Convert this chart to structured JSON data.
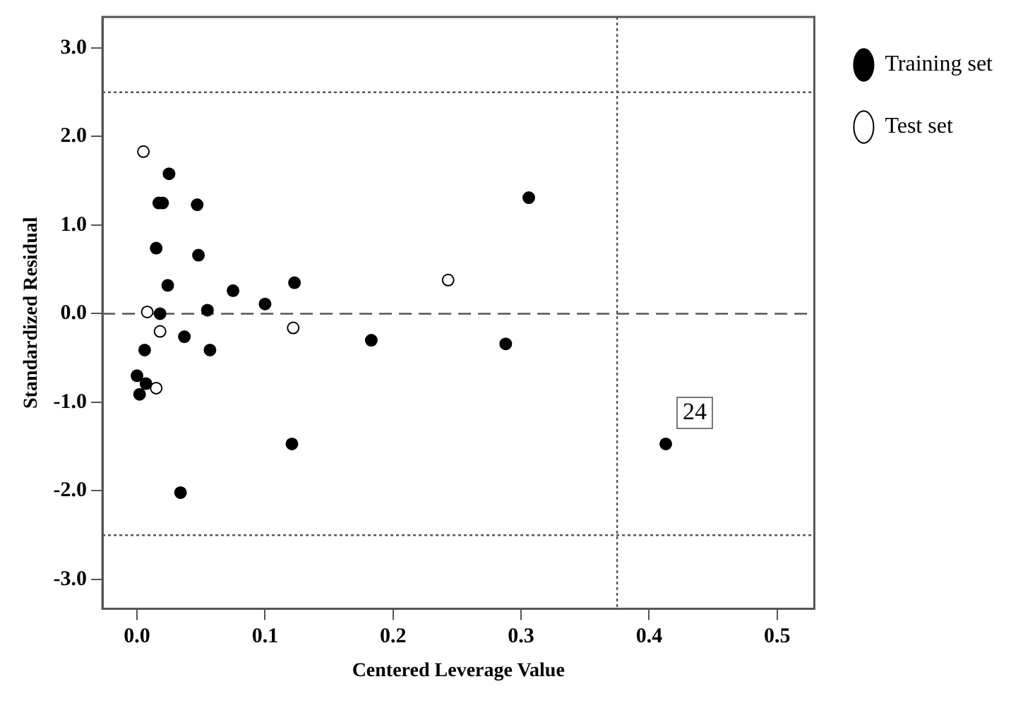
{
  "chart_data": {
    "type": "scatter",
    "xlabel": "Centered Leverage Value",
    "ylabel": "Standardized Residual",
    "xlim": [
      -0.027,
      0.529
    ],
    "ylim": [
      -3.33,
      3.35
    ],
    "xticks": [
      {
        "value": 0,
        "label": "0.0"
      },
      {
        "value": 0.1,
        "label": "0.1"
      },
      {
        "value": 0.2,
        "label": "0.2"
      },
      {
        "value": 0.3,
        "label": "0.3"
      },
      {
        "value": 0.4,
        "label": "0.4"
      },
      {
        "value": 0.5,
        "label": "0.5"
      }
    ],
    "yticks": [
      {
        "value": -3,
        "label": "-3.0"
      },
      {
        "value": -2,
        "label": "-2.0"
      },
      {
        "value": -1,
        "label": "-1.0"
      },
      {
        "value": 0,
        "label": "0.0"
      },
      {
        "value": 1,
        "label": "1.0"
      },
      {
        "value": 2,
        "label": "2.0"
      },
      {
        "value": 3,
        "label": "3.0"
      }
    ],
    "grid": false,
    "legend": "right",
    "marker": "circle",
    "series": [
      {
        "name": "Training set",
        "color": "#000000",
        "x": [
          0.025,
          0.017,
          0.02,
          0.047,
          0.015,
          0.048,
          0.024,
          0.075,
          0.123,
          0.1,
          0.018,
          0.055,
          0.037,
          0.057,
          0.006,
          0.183,
          0.0,
          0.007,
          0.002,
          0.121,
          0.034,
          0.306,
          0.288,
          0.413
        ],
        "values": [
          1.58,
          1.25,
          1.25,
          1.23,
          0.74,
          0.66,
          0.32,
          0.26,
          0.35,
          0.11,
          0.0,
          0.04,
          -0.26,
          -0.41,
          -0.41,
          -0.3,
          -0.7,
          -0.79,
          -0.91,
          -1.47,
          -2.02,
          1.31,
          -0.34,
          -1.47
        ]
      },
      {
        "name": "Test set",
        "color": "#ffffff",
        "x": [
          0.005,
          0.008,
          0.018,
          0.015,
          0.122,
          0.243
        ],
        "values": [
          1.83,
          0.02,
          -0.2,
          -0.84,
          -0.16,
          0.38
        ]
      }
    ],
    "ref_lines": [
      {
        "axis": "y",
        "value": 0,
        "line_style": "dashed"
      },
      {
        "axis": "y",
        "value": 2.5,
        "line_style": "dotted"
      },
      {
        "axis": "y",
        "value": -2.5,
        "line_style": "dotted"
      },
      {
        "axis": "x",
        "value": 0.375,
        "line_style": "dotted"
      }
    ],
    "annotations": [
      {
        "text": "24",
        "x": 0.413,
        "y": -1.47
      }
    ]
  }
}
